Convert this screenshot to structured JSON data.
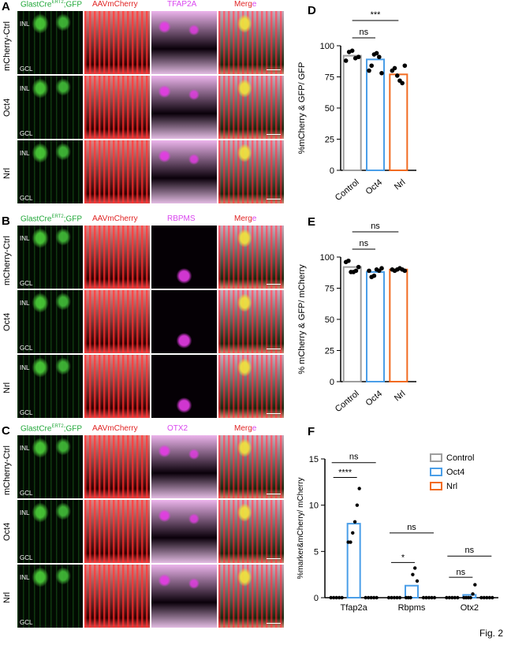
{
  "panels": {
    "A": {
      "letter": "A",
      "marker": "TFAP2A",
      "marker_color": "#d946ef",
      "rows": [
        "mCherry-Ctrl",
        "Oct4",
        "Nrl"
      ]
    },
    "B": {
      "letter": "B",
      "marker": "RBPMS",
      "marker_color": "#d946ef",
      "rows": [
        "mCherry-Ctrl",
        "Oct4",
        "Nrl"
      ]
    },
    "C": {
      "letter": "C",
      "marker": "OTX2",
      "marker_color": "#d946ef",
      "rows": [
        "mCherry-Ctrl",
        "Oct4",
        "Nrl"
      ]
    }
  },
  "headers": {
    "glast": "GlastCre",
    "glast_sup": "ERT2",
    "glast_suffix": ";GFP",
    "aav": "AAVmCherry",
    "merge_a": "Merg",
    "merge_b": "e"
  },
  "layer_labels": {
    "inl": "INL",
    "gcl": "GCL"
  },
  "colors": {
    "green": "#22c55e",
    "red": "#ef4444",
    "magenta": "#d946ef",
    "control": "#9e9e9e",
    "oct4": "#4a9ee8",
    "nrl": "#f26b21"
  },
  "fig_label": "Fig. 2",
  "chart_data": [
    {
      "letter": "D",
      "type": "bar",
      "categories": [
        "Control",
        "Oct4",
        "Nrl"
      ],
      "values": [
        92,
        89,
        77
      ],
      "points": [
        [
          88,
          95,
          96,
          90,
          91
        ],
        [
          80,
          84,
          93,
          94,
          91,
          78
        ],
        [
          80,
          82,
          76,
          72,
          70,
          84
        ]
      ],
      "ylabel": "%mCherry & GFP/ GFP",
      "ylim": [
        0,
        100
      ],
      "yticks": [
        0,
        25,
        50,
        75,
        100
      ],
      "annotations": [
        {
          "from": 0,
          "to": 1,
          "text": "ns"
        },
        {
          "from": 0,
          "to": 2,
          "text": "***"
        }
      ]
    },
    {
      "letter": "E",
      "type": "bar",
      "categories": [
        "Control",
        "Oct4",
        "Nrl"
      ],
      "values": [
        92,
        88,
        90
      ],
      "points": [
        [
          96,
          97,
          88,
          88,
          89,
          92
        ],
        [
          89,
          84,
          85,
          90,
          89,
          91
        ],
        [
          90,
          89,
          90,
          91,
          90,
          89
        ]
      ],
      "ylabel": "% mCherry & GFP/ mCherry",
      "ylim": [
        0,
        100
      ],
      "yticks": [
        0,
        25,
        50,
        75,
        100
      ],
      "annotations": [
        {
          "from": 0,
          "to": 1,
          "text": "ns"
        },
        {
          "from": 0,
          "to": 2,
          "text": "ns"
        }
      ]
    },
    {
      "letter": "F",
      "type": "bar",
      "categories": [
        "Tfap2a",
        "Rbpms",
        "Otx2"
      ],
      "series": [
        {
          "name": "Control",
          "values": [
            0,
            0,
            0
          ]
        },
        {
          "name": "Oct4",
          "values": [
            8,
            1.3,
            0.3
          ]
        },
        {
          "name": "Nrl",
          "values": [
            0,
            0,
            0
          ]
        }
      ],
      "points": [
        [
          [
            0,
            0,
            0,
            0,
            0
          ],
          [
            6,
            6,
            7,
            8.2,
            10,
            11.8
          ],
          [
            0,
            0,
            0,
            0,
            0
          ]
        ],
        [
          [
            0,
            0,
            0,
            0,
            0
          ],
          [
            0,
            0,
            0,
            2.5,
            3.2,
            1.8
          ],
          [
            0,
            0,
            0,
            0,
            0
          ]
        ],
        [
          [
            0,
            0,
            0,
            0,
            0
          ],
          [
            0,
            0,
            0,
            0,
            0.4,
            1.4
          ],
          [
            0,
            0,
            0,
            0,
            0
          ]
        ]
      ],
      "ylabel": "%marker&mCherry/ mCherry",
      "ylim": [
        0,
        15
      ],
      "yticks": [
        0,
        5,
        10,
        15
      ],
      "annotations": [
        {
          "group": 0,
          "text": "****",
          "pair": "ctrl-oct4"
        },
        {
          "group": 0,
          "text": "ns",
          "pair": "all"
        },
        {
          "group": 1,
          "text": "*",
          "pair": "ctrl-oct4"
        },
        {
          "group": 1,
          "text": "ns",
          "pair": "all"
        },
        {
          "group": 2,
          "text": "ns",
          "pair": "ctrl-oct4"
        },
        {
          "group": 2,
          "text": "ns",
          "pair": "all"
        }
      ],
      "legend": "top-right"
    }
  ]
}
